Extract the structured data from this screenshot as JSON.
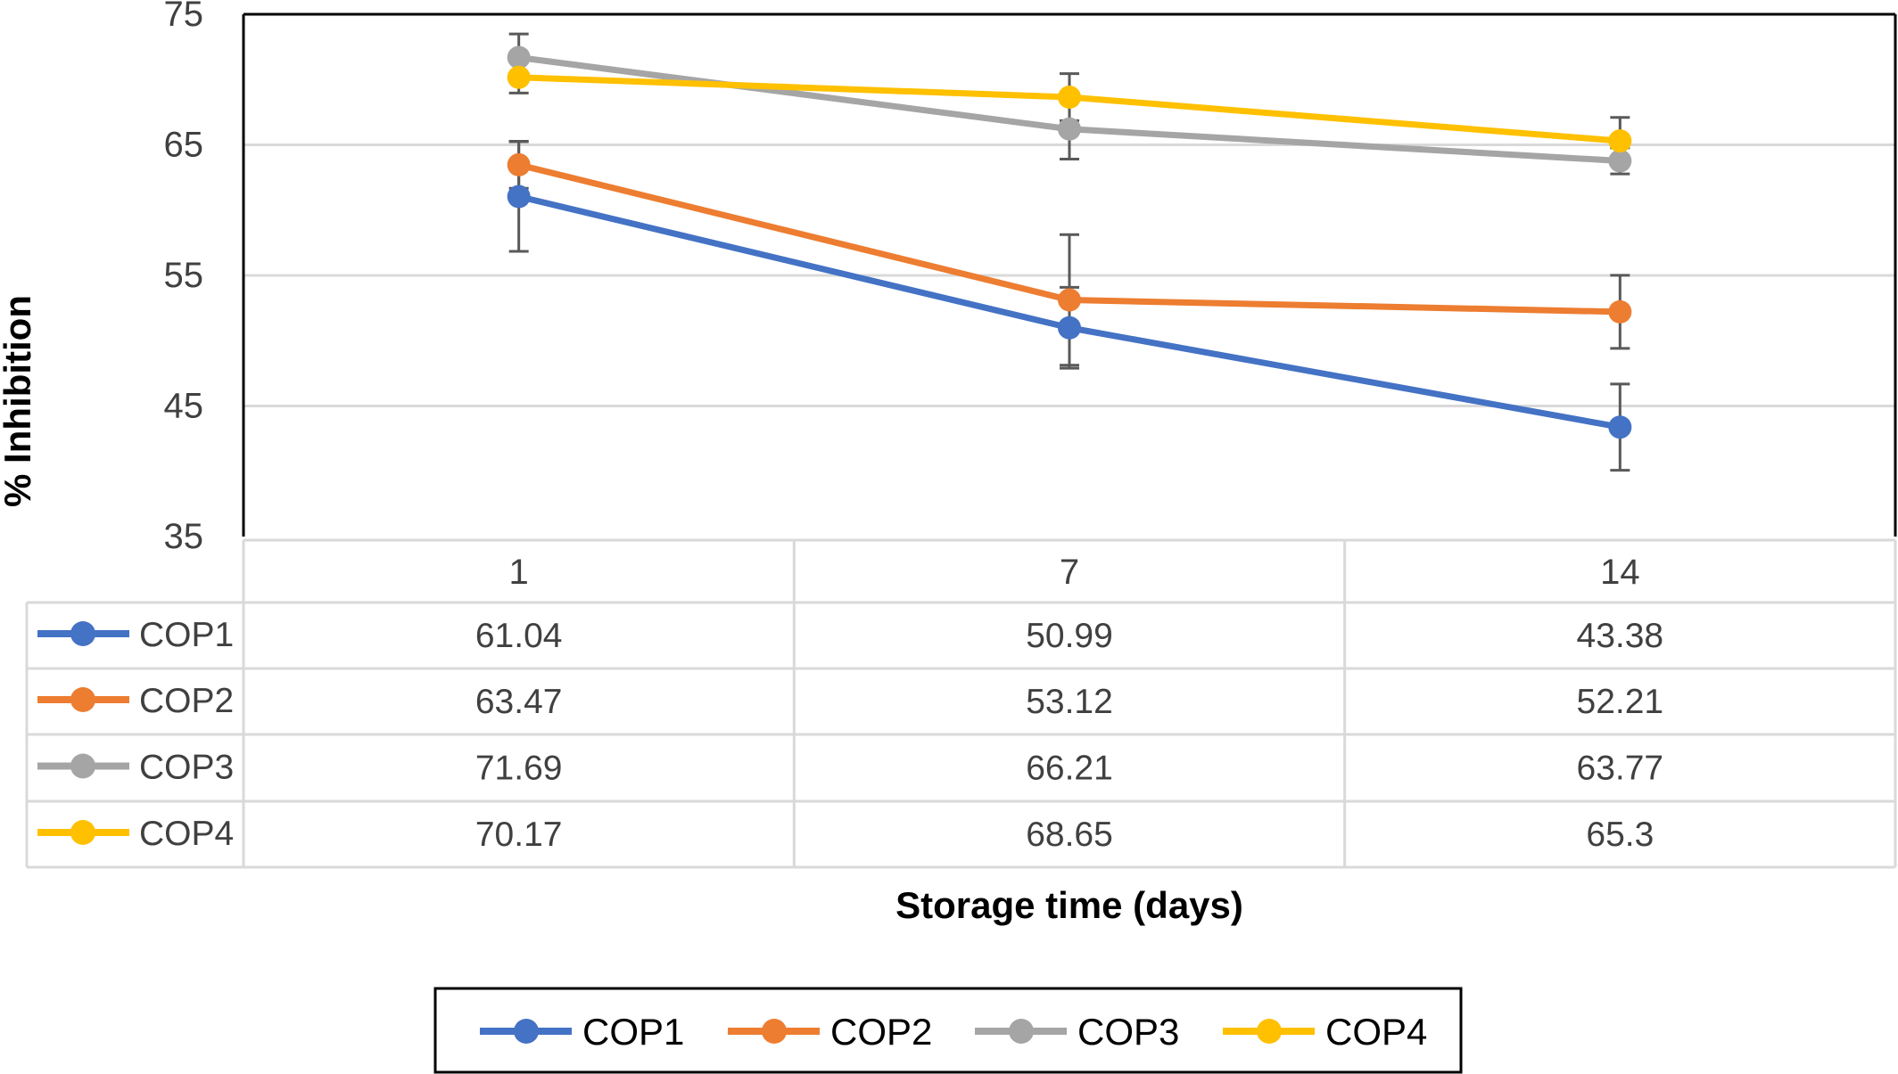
{
  "chart_data": {
    "type": "line",
    "title": "",
    "xlabel": "Storage time (days)",
    "ylabel": "% Inhibition",
    "categories": [
      "1",
      "7",
      "14"
    ],
    "ylim": [
      35,
      75
    ],
    "yticks": [
      35,
      45,
      55,
      65,
      75
    ],
    "grid": true,
    "legend_position": "bottom",
    "data_table": true,
    "series": [
      {
        "name": "COP1",
        "color": "#4472C4",
        "values": [
          61.04,
          50.99,
          43.38
        ],
        "error": [
          4.2,
          3.1,
          3.3
        ]
      },
      {
        "name": "COP2",
        "color": "#ED7D31",
        "values": [
          63.47,
          53.12,
          52.21
        ],
        "error": [
          1.8,
          5.0,
          2.8
        ]
      },
      {
        "name": "COP3",
        "color": "#A5A5A5",
        "values": [
          71.69,
          66.21,
          63.77
        ],
        "error": [
          1.8,
          2.3,
          1.0
        ]
      },
      {
        "name": "COP4",
        "color": "#FFC000",
        "values": [
          70.17,
          68.65,
          65.3
        ],
        "error": [
          1.2,
          1.8,
          1.8
        ]
      }
    ],
    "data_labels": [
      [
        "61.04",
        "50.99",
        "43.38"
      ],
      [
        "63.47",
        "53.12",
        "52.21"
      ],
      [
        "71.69",
        "66.21",
        "63.77"
      ],
      [
        "70.17",
        "68.65",
        "65.3"
      ]
    ]
  }
}
